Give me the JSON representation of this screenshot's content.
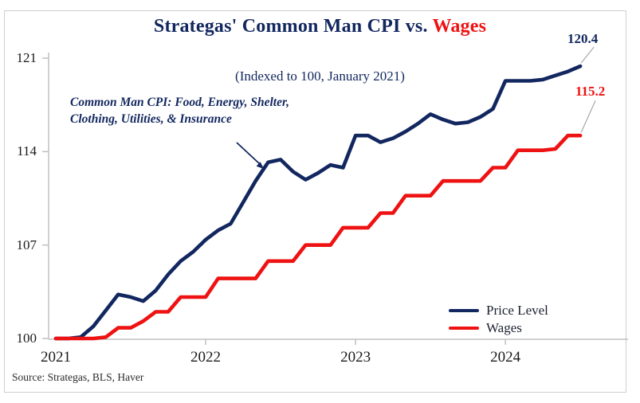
{
  "title": {
    "main": "Strategas' Common Man CPI vs. ",
    "highlight": "Wages"
  },
  "subtitle": "(Indexed to 100, January 2021)",
  "annotation": {
    "line1": "Common Man CPI: Food, Energy, Shelter,",
    "line2": "Clothing, Utilities, & Insurance"
  },
  "source": "Source: Strategas, BLS, Haver",
  "colors": {
    "navy": "#12275f",
    "red": "#ee1212",
    "legend_text": "#1c2130",
    "axis": "#c0c0c0",
    "leader": "#a8a8a8",
    "tick_text": "#1a1a1a"
  },
  "chart_data": {
    "type": "line",
    "title": "Strategas' Common Man CPI vs. Wages",
    "subtitle": "(Indexed to 100, January 2021)",
    "x_unit": "month",
    "x_start": "2021-01",
    "x_end": "2024-07",
    "xtick_labels": [
      "2021",
      "2022",
      "2023",
      "2024"
    ],
    "xtick_month_positions": [
      0,
      12,
      24,
      36
    ],
    "ytick_values": [
      100,
      107,
      114,
      121
    ],
    "ylim": [
      100,
      121
    ],
    "grid": false,
    "legend_position": "lower right",
    "series": [
      {
        "name": "Price Level",
        "color": "#12275f",
        "end_label": "120.4",
        "values": [
          100.0,
          100.0,
          100.1,
          100.9,
          102.1,
          103.3,
          103.1,
          102.8,
          103.6,
          104.8,
          105.8,
          106.5,
          107.4,
          108.1,
          108.6,
          110.2,
          111.8,
          113.2,
          113.4,
          112.5,
          111.9,
          112.4,
          113.0,
          112.8,
          115.2,
          115.2,
          114.7,
          115.0,
          115.5,
          116.1,
          116.8,
          116.4,
          116.1,
          116.2,
          116.6,
          117.2,
          119.3,
          119.3,
          119.3,
          119.4,
          119.7,
          120.0,
          120.4
        ]
      },
      {
        "name": "Wages",
        "color": "#ee1212",
        "end_label": "115.2",
        "values": [
          100.0,
          100.0,
          100.0,
          100.0,
          100.1,
          100.8,
          100.8,
          101.3,
          102.0,
          102.0,
          103.1,
          103.1,
          103.1,
          104.5,
          104.5,
          104.5,
          104.5,
          105.8,
          105.8,
          105.8,
          107.0,
          107.0,
          107.0,
          108.3,
          108.3,
          108.3,
          109.4,
          109.4,
          110.7,
          110.7,
          110.7,
          111.8,
          111.8,
          111.8,
          111.8,
          112.8,
          112.8,
          114.1,
          114.1,
          114.1,
          114.2,
          115.2,
          115.2
        ]
      }
    ]
  }
}
